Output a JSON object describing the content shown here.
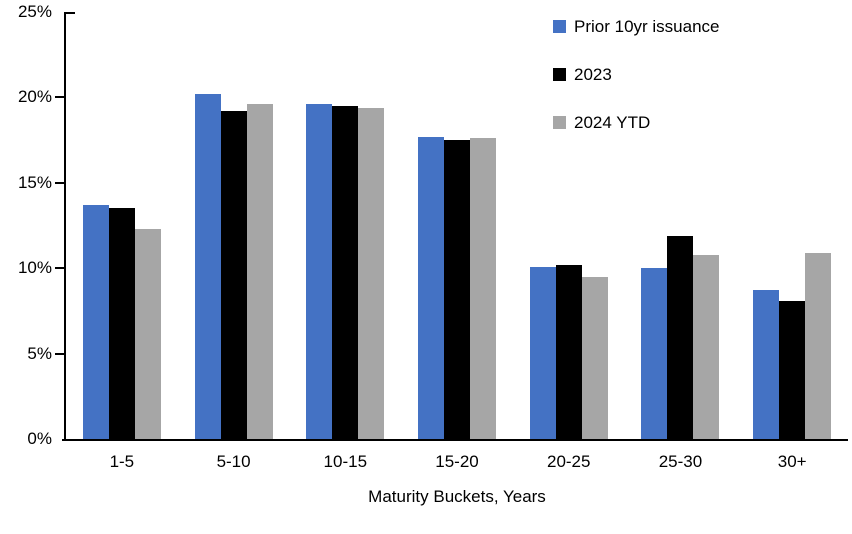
{
  "chart_data": {
    "type": "bar",
    "title": "",
    "xlabel": "Maturity Buckets, Years",
    "ylabel": "",
    "ylim": [
      0,
      25
    ],
    "ytick_step": 5,
    "ytick_labels": [
      "0%",
      "5%",
      "10%",
      "15%",
      "20%",
      "25%"
    ],
    "grid": false,
    "legend_position": "top-right",
    "axis_color": "#000000",
    "categories": [
      "1-5",
      "5-10",
      "10-15",
      "15-20",
      "20-25",
      "25-30",
      "30+"
    ],
    "series": [
      {
        "name": "Prior 10yr issuance",
        "color": "#4472C4",
        "values": [
          13.7,
          20.2,
          19.6,
          17.7,
          10.1,
          10.0,
          8.7
        ]
      },
      {
        "name": "2023",
        "color": "#000000",
        "values": [
          13.5,
          19.2,
          19.5,
          17.5,
          10.2,
          11.9,
          8.1
        ]
      },
      {
        "name": "2024 YTD",
        "color": "#A6A6A6",
        "values": [
          12.3,
          19.6,
          19.4,
          17.6,
          9.5,
          10.8,
          10.9
        ]
      }
    ]
  }
}
